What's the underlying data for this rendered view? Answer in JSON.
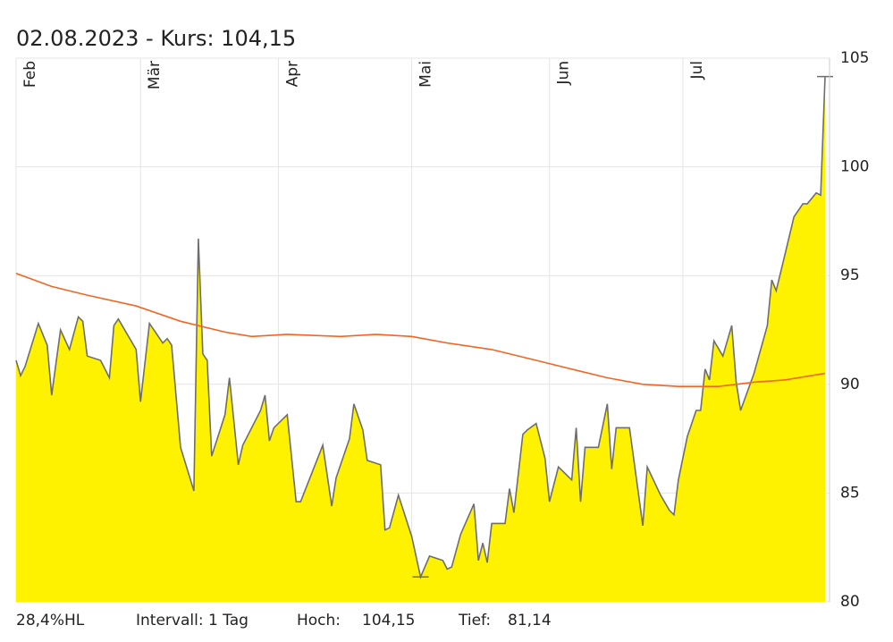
{
  "chart_data": {
    "type": "area",
    "title": "02.08.2023  -  Kurs: 104,15",
    "xlim": [
      0,
      183
    ],
    "xticks": [
      {
        "value": 0,
        "label": "Feb"
      },
      {
        "value": 28,
        "label": "Mär"
      },
      {
        "value": 59,
        "label": "Apr"
      },
      {
        "value": 89,
        "label": "Mai"
      },
      {
        "value": 120,
        "label": "Jun"
      },
      {
        "value": 150,
        "label": "Jul"
      }
    ],
    "ylim": [
      80,
      105
    ],
    "yticks": [
      80,
      85,
      90,
      95,
      100,
      105
    ],
    "grid": true,
    "series": [
      {
        "type": "area",
        "color": "#fff200",
        "line_color": "#6e6e6e",
        "x": [
          0,
          1,
          2,
          5,
          7,
          8,
          10,
          12,
          14,
          15,
          16,
          19,
          21,
          22,
          23,
          27,
          28,
          30,
          33,
          34,
          35,
          37,
          40,
          41,
          42,
          43,
          44,
          47,
          48,
          50,
          51,
          55,
          56,
          57,
          58,
          61,
          63,
          64,
          69,
          71,
          72,
          75,
          76,
          78,
          79,
          82,
          83,
          84,
          86,
          89,
          91,
          93,
          96,
          97,
          98,
          100,
          103,
          104,
          105,
          106,
          107,
          110,
          111,
          112,
          114,
          115,
          117,
          119,
          120,
          122,
          125,
          126,
          127,
          128,
          131,
          133,
          134,
          135,
          138,
          141,
          142,
          145,
          147,
          148,
          149,
          151,
          153,
          154,
          155,
          156,
          157,
          159,
          161,
          162,
          163,
          166,
          169,
          170,
          171,
          173,
          175,
          177,
          178,
          180,
          181,
          182
        ],
        "values": [
          91.1,
          90.4,
          90.8,
          92.8,
          91.8,
          89.5,
          92.5,
          91.6,
          93.1,
          92.9,
          91.3,
          91.1,
          90.3,
          92.7,
          93.0,
          91.6,
          89.2,
          92.8,
          91.9,
          92.1,
          91.8,
          87.1,
          85.1,
          96.7,
          91.4,
          91.1,
          86.7,
          88.6,
          90.3,
          86.3,
          87.2,
          88.8,
          89.5,
          87.4,
          88.0,
          88.6,
          84.6,
          84.6,
          87.2,
          84.4,
          85.7,
          87.5,
          89.1,
          87.9,
          86.5,
          86.3,
          83.3,
          83.4,
          84.9,
          83.0,
          81.14,
          82.1,
          81.9,
          81.5,
          81.6,
          83.1,
          84.5,
          81.9,
          82.7,
          81.8,
          83.6,
          83.6,
          85.2,
          84.1,
          87.7,
          87.9,
          88.2,
          86.6,
          84.6,
          86.2,
          85.6,
          88.0,
          84.6,
          87.1,
          87.1,
          89.1,
          86.1,
          88.0,
          88.0,
          83.5,
          86.2,
          84.9,
          84.2,
          84.0,
          85.6,
          87.6,
          88.8,
          88.8,
          90.7,
          90.2,
          92.0,
          91.3,
          92.7,
          90.1,
          88.8,
          90.5,
          92.7,
          94.8,
          94.3,
          96.0,
          97.7,
          98.3,
          98.3,
          98.8,
          98.7,
          104.15
        ]
      },
      {
        "type": "line",
        "color": "#f26522",
        "x": [
          0,
          8,
          16,
          27,
          37,
          47,
          53,
          61,
          73,
          81,
          89,
          97,
          107,
          117,
          125,
          133,
          141,
          149,
          158,
          166,
          173,
          182
        ],
        "values": [
          95.1,
          94.5,
          94.1,
          93.6,
          92.9,
          92.4,
          92.2,
          92.3,
          92.2,
          92.3,
          92.2,
          91.9,
          91.6,
          91.1,
          90.7,
          90.3,
          90.0,
          89.9,
          89.9,
          90.1,
          90.2,
          90.5
        ]
      }
    ],
    "footer": {
      "range": "28,4%HL",
      "interval": "Intervall: 1 Tag"
    },
    "stats": {
      "labels": [
        "Hoch:",
        "Tief:"
      ],
      "values": [
        104.15,
        81.14
      ],
      "value_labels": [
        "104,15",
        "81,14"
      ]
    }
  }
}
